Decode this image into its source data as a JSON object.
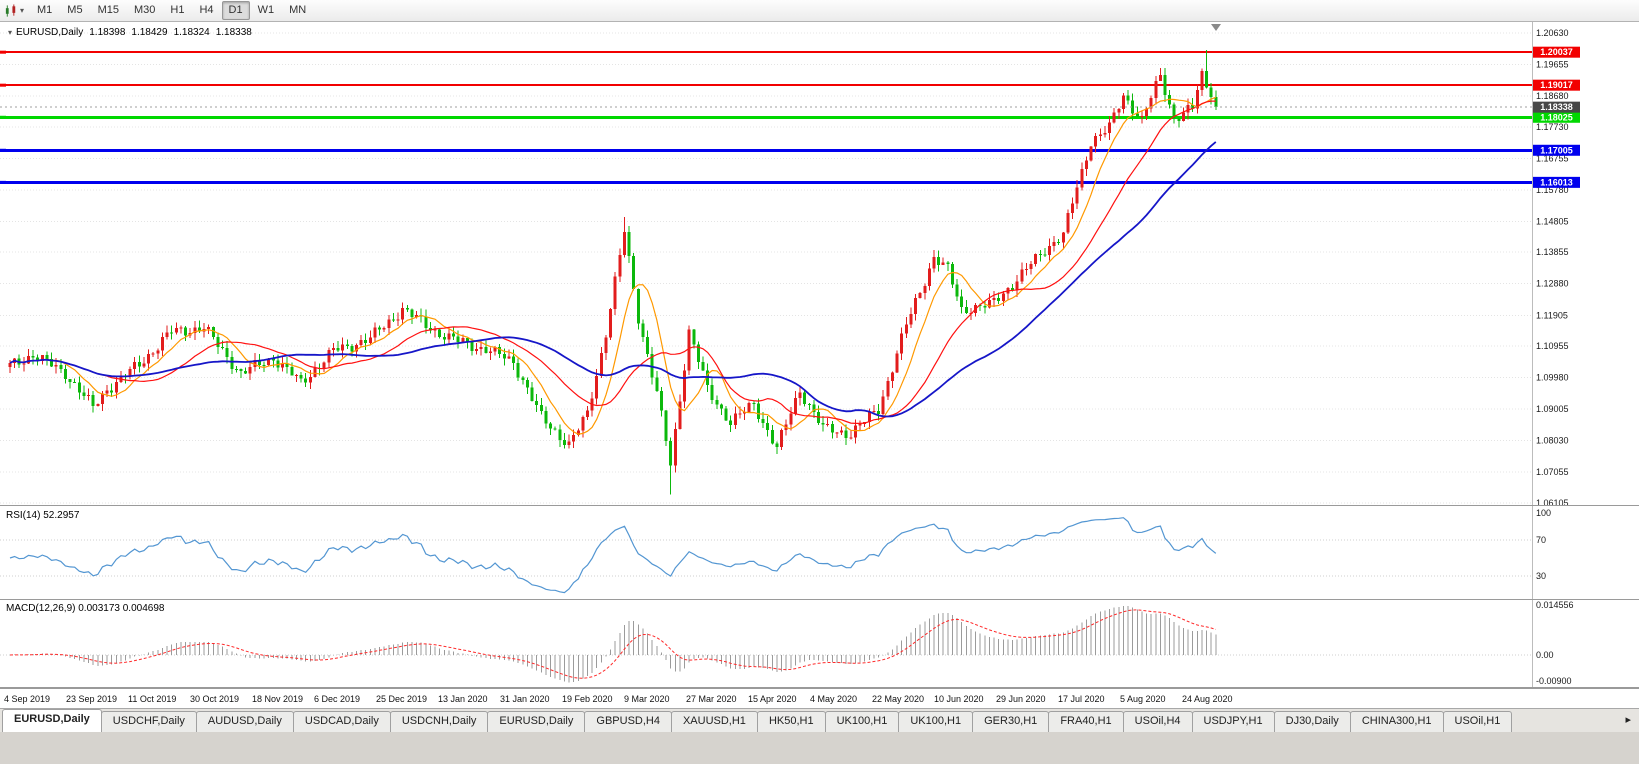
{
  "toolbar": {
    "timeframes": [
      "M1",
      "M5",
      "M15",
      "M30",
      "H1",
      "H4",
      "D1",
      "W1",
      "MN"
    ],
    "active_timeframe": "D1"
  },
  "symbol_readout": {
    "caret": "▾",
    "symbol": "EURUSD,Daily",
    "open": "1.18398",
    "high": "1.18429",
    "low": "1.18324",
    "close": "1.18338"
  },
  "price_axis": {
    "labels": [
      "1.20630",
      "1.19655",
      "1.18680",
      "1.17730",
      "1.16755",
      "1.15780",
      "1.14805",
      "1.13855",
      "1.12880",
      "1.11905",
      "1.10955",
      "1.09980",
      "1.09005",
      "1.08030",
      "1.07055",
      "1.06105"
    ]
  },
  "levels": [
    {
      "label": "1.20037",
      "value": 1.20037,
      "color": "#f20000",
      "width": 2
    },
    {
      "label": "1.19017",
      "value": 1.19017,
      "color": "#f20000",
      "width": 2
    },
    {
      "label": "1.18025",
      "value": 1.18025,
      "color": "#00d800",
      "width": 3
    },
    {
      "label": "1.17005",
      "value": 1.17005,
      "color": "#0000ee",
      "width": 3
    },
    {
      "label": "1.16013",
      "value": 1.16013,
      "color": "#0000ee",
      "width": 3
    }
  ],
  "current_price": {
    "label": "1.18338",
    "value": 1.18338,
    "tag_color": "#474747"
  },
  "rsi": {
    "label": "RSI(14) 52.2957",
    "period": 14,
    "current": 52.2957,
    "line_color": "#5396d2",
    "guide_levels": [
      70,
      30
    ],
    "axis_labels": [
      {
        "text": "100",
        "value": 100
      },
      {
        "text": "70",
        "value": 70
      },
      {
        "text": "30",
        "value": 30
      }
    ]
  },
  "macd": {
    "label": "MACD(12,26,9) 0.003173 0.004698",
    "fast": 12,
    "slow": 26,
    "signal": 9,
    "macd_value": 0.003173,
    "signal_value": 0.004698,
    "hist_color": "#9b9b9b",
    "signal_color": "#ff2a2a",
    "axis_labels": [
      {
        "text": "0.014556",
        "value": 0.014556
      },
      {
        "text": "0.00",
        "value": 0
      },
      {
        "text": "-0.00900",
        "value": -0.009
      }
    ]
  },
  "date_axis": [
    "4 Sep 2019",
    "23 Sep 2019",
    "11 Oct 2019",
    "30 Oct 2019",
    "18 Nov 2019",
    "6 Dec 2019",
    "25 Dec 2019",
    "13 Jan 2020",
    "31 Jan 2020",
    "19 Feb 2020",
    "9 Mar 2020",
    "27 Mar 2020",
    "15 Apr 2020",
    "4 May 2020",
    "22 May 2020",
    "10 Jun 2020",
    "29 Jun 2020",
    "17 Jul 2020",
    "5 Aug 2020",
    "24 Aug 2020"
  ],
  "tabs": {
    "active_index": 0,
    "scroll_right_icon": "▸",
    "items": [
      "EURUSD,Daily",
      "USDCHF,Daily",
      "AUDUSD,Daily",
      "USDCAD,Daily",
      "USDCNH,Daily",
      "EURUSD,Daily",
      "GBPUSD,H4",
      "XAUUSD,H1",
      "HK50,H1",
      "UK100,H1",
      "UK100,H1",
      "GER30,H1",
      "FRA40,H1",
      "USOil,H4",
      "USDJPY,H1",
      "DJ30,Daily",
      "CHINA300,H1",
      "USOil,H1"
    ]
  },
  "chart_data": {
    "type": "candlestick",
    "symbol": "EURUSD",
    "timeframe": "Daily",
    "bars": 262,
    "price_range": [
      1.0604,
      1.2097
    ],
    "bull_color": "#e21d1d",
    "bear_color": "#0cb80c",
    "keyframes": [
      [
        0,
        1.1035
      ],
      [
        5,
        1.1068
      ],
      [
        12,
        1.1012
      ],
      [
        18,
        1.0905
      ],
      [
        21,
        1.0962
      ],
      [
        28,
        1.1038
      ],
      [
        35,
        1.114
      ],
      [
        42,
        1.1152
      ],
      [
        50,
        1.101
      ],
      [
        57,
        1.106
      ],
      [
        63,
        1.0982
      ],
      [
        70,
        1.108
      ],
      [
        78,
        1.1118
      ],
      [
        85,
        1.121
      ],
      [
        90,
        1.116
      ],
      [
        95,
        1.112
      ],
      [
        103,
        1.1085
      ],
      [
        109,
        1.1048
      ],
      [
        115,
        1.0875
      ],
      [
        121,
        1.079
      ],
      [
        125,
        1.0885
      ],
      [
        129,
        1.1135
      ],
      [
        133,
        1.145
      ],
      [
        136,
        1.1185
      ],
      [
        140,
        1.095
      ],
      [
        143,
        1.073
      ],
      [
        147,
        1.114
      ],
      [
        151,
        1.096
      ],
      [
        156,
        1.086
      ],
      [
        161,
        1.0915
      ],
      [
        166,
        1.078
      ],
      [
        171,
        1.096
      ],
      [
        176,
        1.084
      ],
      [
        182,
        1.0825
      ],
      [
        188,
        1.09
      ],
      [
        194,
        1.116
      ],
      [
        200,
        1.137
      ],
      [
        203,
        1.133
      ],
      [
        206,
        1.121
      ],
      [
        212,
        1.122
      ],
      [
        218,
        1.13
      ],
      [
        224,
        1.1395
      ],
      [
        228,
        1.144
      ],
      [
        234,
        1.173
      ],
      [
        238,
        1.177
      ],
      [
        241,
        1.187
      ],
      [
        245,
        1.1795
      ],
      [
        249,
        1.193
      ],
      [
        252,
        1.18
      ],
      [
        256,
        1.183
      ],
      [
        258,
        1.1945
      ],
      [
        259,
        1.1895
      ],
      [
        261,
        1.18338
      ]
    ],
    "wick_overrides": {
      "121": {
        "low": 1.0778
      },
      "133": {
        "high": 1.1495
      },
      "143": {
        "low": 1.0636
      },
      "259": {
        "high": 1.2011
      }
    },
    "moving_averages": [
      {
        "period": 8,
        "color": "#ff9900",
        "width": 1.2,
        "name": "ma-fast"
      },
      {
        "period": 21,
        "color": "#ff1111",
        "width": 1.2,
        "name": "ma-mid"
      },
      {
        "period": 40,
        "color": "#1616c8",
        "width": 1.8,
        "name": "ma-slow"
      }
    ]
  }
}
